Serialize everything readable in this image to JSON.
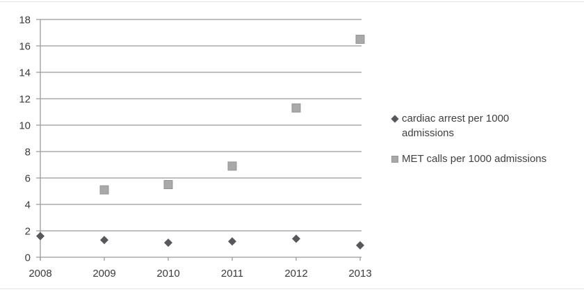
{
  "figure": {
    "background": "#ffffff",
    "frame_line_color": "#e3e3e3"
  },
  "chart_data": {
    "type": "scatter",
    "x": [
      2008,
      2009,
      2010,
      2011,
      2012,
      2013
    ],
    "series": [
      {
        "name": "cardiac arrest per 1000 admissions",
        "marker": "diamond",
        "color": "#58585c",
        "values": [
          1.6,
          1.3,
          1.1,
          1.2,
          1.4,
          0.9
        ]
      },
      {
        "name": "MET calls per 1000 admissions",
        "marker": "square",
        "color": "#a9a9a9",
        "border_color": "#949494",
        "values": [
          null,
          5.1,
          5.5,
          6.9,
          11.3,
          16.5
        ]
      }
    ],
    "title": "",
    "xlabel": "",
    "ylabel": "",
    "ylim": [
      0,
      18
    ],
    "yticks": [
      0,
      2,
      4,
      6,
      8,
      10,
      12,
      14,
      16,
      18
    ],
    "grid": "horizontal-only",
    "gridline_color": "#9b9b9b",
    "axis_color": "#9b9b9b",
    "tick_label_color": "#3a3a3a",
    "legend_position": "right-middle"
  },
  "legend": {
    "items": [
      {
        "label": "cardiac arrest per 1000 admissions",
        "lines": [
          "cardiac arrest per 1000",
          "admissions"
        ],
        "marker": "diamond",
        "color": "#58585c"
      },
      {
        "label": "MET calls per 1000 admissions",
        "lines": [
          "MET calls per 1000 admissions"
        ],
        "marker": "square",
        "color": "#a9a9a9"
      }
    ]
  }
}
